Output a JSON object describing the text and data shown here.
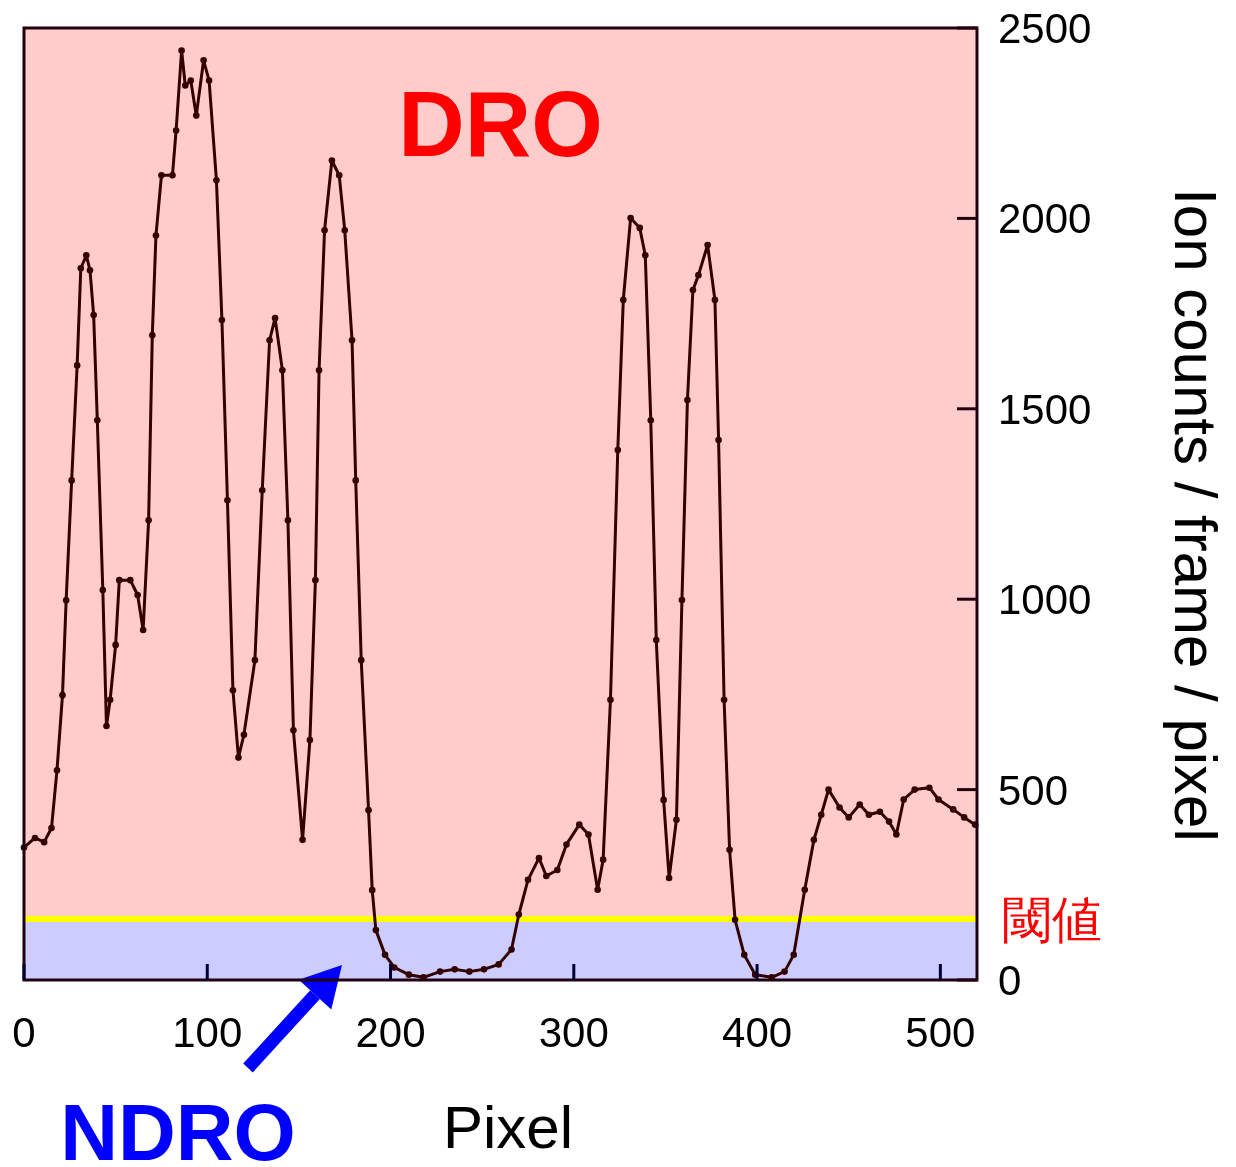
{
  "chart_data": {
    "type": "line",
    "xlabel": "Pixel",
    "ylabel": "Ion counts / frame / pixel",
    "xlim": [
      0,
      520
    ],
    "ylim": [
      0,
      2500
    ],
    "xticks": [
      0,
      100,
      200,
      300,
      400,
      500
    ],
    "yticks": [
      0,
      500,
      1000,
      1500,
      2000,
      2500
    ],
    "marker": "circle",
    "ref_lines": [
      {
        "axis": "y",
        "value": 160,
        "label": "閾値",
        "color": "#ffff00"
      }
    ],
    "bands": [
      {
        "axis": "y",
        "from": 160,
        "to": 2500,
        "label": "DRO",
        "color": "#ffcccc"
      },
      {
        "axis": "y",
        "from": 0,
        "to": 160,
        "label": "NDRO",
        "color": "#ccccff"
      }
    ],
    "series": [
      {
        "color": "#330000",
        "x": [
          0,
          6,
          11,
          15,
          18,
          21,
          23,
          26,
          29,
          31,
          34,
          36,
          38,
          40,
          43,
          45,
          47,
          50,
          52,
          58,
          62,
          65,
          68,
          70,
          72,
          75,
          81,
          83,
          86,
          88,
          91,
          94,
          98,
          101,
          105,
          108,
          111,
          114,
          117,
          120,
          126,
          130,
          134,
          137,
          141,
          144,
          147,
          152,
          156,
          159,
          161,
          164,
          168,
          172,
          175,
          179,
          181,
          184,
          188,
          190,
          192,
          197,
          202,
          210,
          218,
          227,
          235,
          243,
          251,
          259,
          266,
          270,
          275,
          281,
          285,
          291,
          296,
          303,
          308,
          313,
          316,
          320,
          324,
          327,
          331,
          336,
          339,
          342,
          345,
          349,
          352,
          356,
          359,
          362,
          365,
          368,
          373,
          377,
          379,
          382,
          385,
          388,
          393,
          399,
          408,
          415,
          420,
          426,
          431,
          435,
          439,
          445,
          450,
          456,
          461,
          467,
          472,
          476,
          480,
          486,
          494,
          499,
          507,
          513,
          519
        ],
        "values": [
          348,
          373,
          362,
          399,
          551,
          748,
          997,
          1312,
          1614,
          1869,
          1903,
          1864,
          1746,
          1470,
          1024,
          667,
          736,
          880,
          1050,
          1050,
          1011,
          919,
          1207,
          1693,
          1955,
          2113,
          2113,
          2231,
          2441,
          2349,
          2362,
          2270,
          2415,
          2362,
          2100,
          1733,
          1260,
          761,
          584,
          644,
          840,
          1286,
          1680,
          1738,
          1601,
          1207,
          656,
          368,
          630,
          1050,
          1601,
          1969,
          2152,
          2113,
          1969,
          1680,
          1312,
          840,
          446,
          236,
          131,
          66,
          33,
          14,
          7,
          22,
          28,
          22,
          28,
          41,
          80,
          172,
          263,
          320,
          273,
          289,
          356,
          408,
          382,
          237,
          316,
          736,
          1392,
          1786,
          2001,
          1975,
          1903,
          1470,
          893,
          473,
          268,
          421,
          998,
          1523,
          1812,
          1851,
          1930,
          1786,
          1418,
          736,
          342,
          158,
          66,
          14,
          7,
          22,
          66,
          237,
          368,
          434,
          500,
          453,
          427,
          461,
          434,
          442,
          416,
          382,
          474,
          500,
          505,
          474,
          448,
          427,
          408
        ]
      }
    ]
  }
}
